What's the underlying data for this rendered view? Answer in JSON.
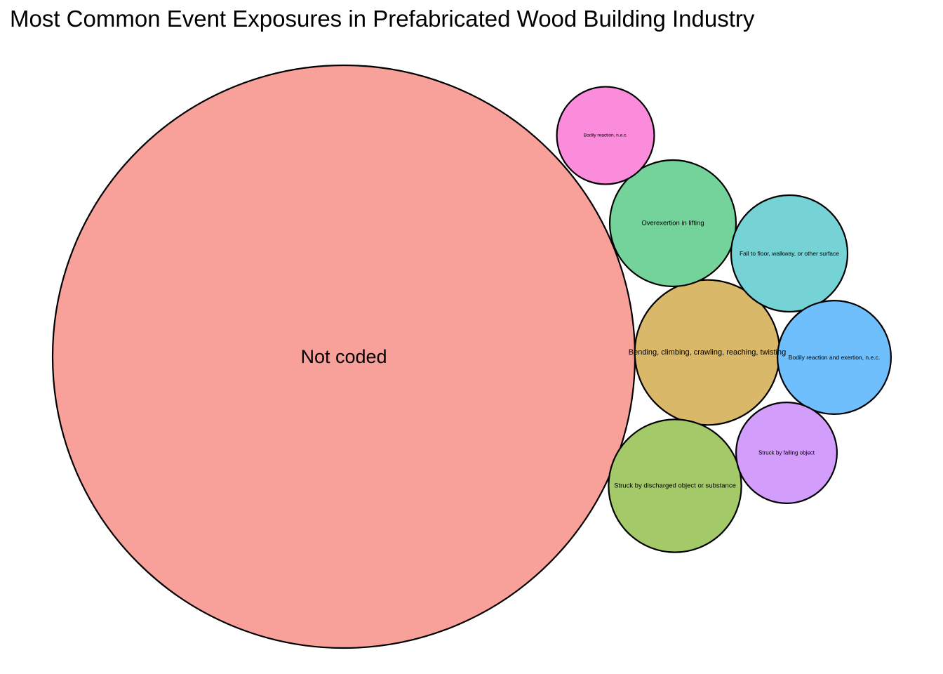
{
  "chart_data": {
    "type": "bubble",
    "title": "Most Common Event Exposures in Prefabricated Wood Building Industry",
    "legend": "none",
    "items": [
      {
        "name": "Not coded",
        "value": 1000,
        "color": "#F8A09A"
      },
      {
        "name": "Bending, climbing, crawling, reaching, twisting",
        "value": 62,
        "color": "#DAB86A"
      },
      {
        "name": "Struck by discharged object or substance",
        "value": 52,
        "color": "#A3C968"
      },
      {
        "name": "Overexertion in lifting",
        "value": 47,
        "color": "#74D39A"
      },
      {
        "name": "Fall to floor, walkway, or other surface",
        "value": 40,
        "color": "#76D3D5"
      },
      {
        "name": "Bodily reaction and exertion, n.e.c.",
        "value": 38,
        "color": "#6EBFFB"
      },
      {
        "name": "Bodily reaction, n.e.c.",
        "value": 28,
        "color": "#FB8BDB"
      },
      {
        "name": "Struck by falling object",
        "value": 30,
        "color": "#D39DFB"
      }
    ]
  }
}
